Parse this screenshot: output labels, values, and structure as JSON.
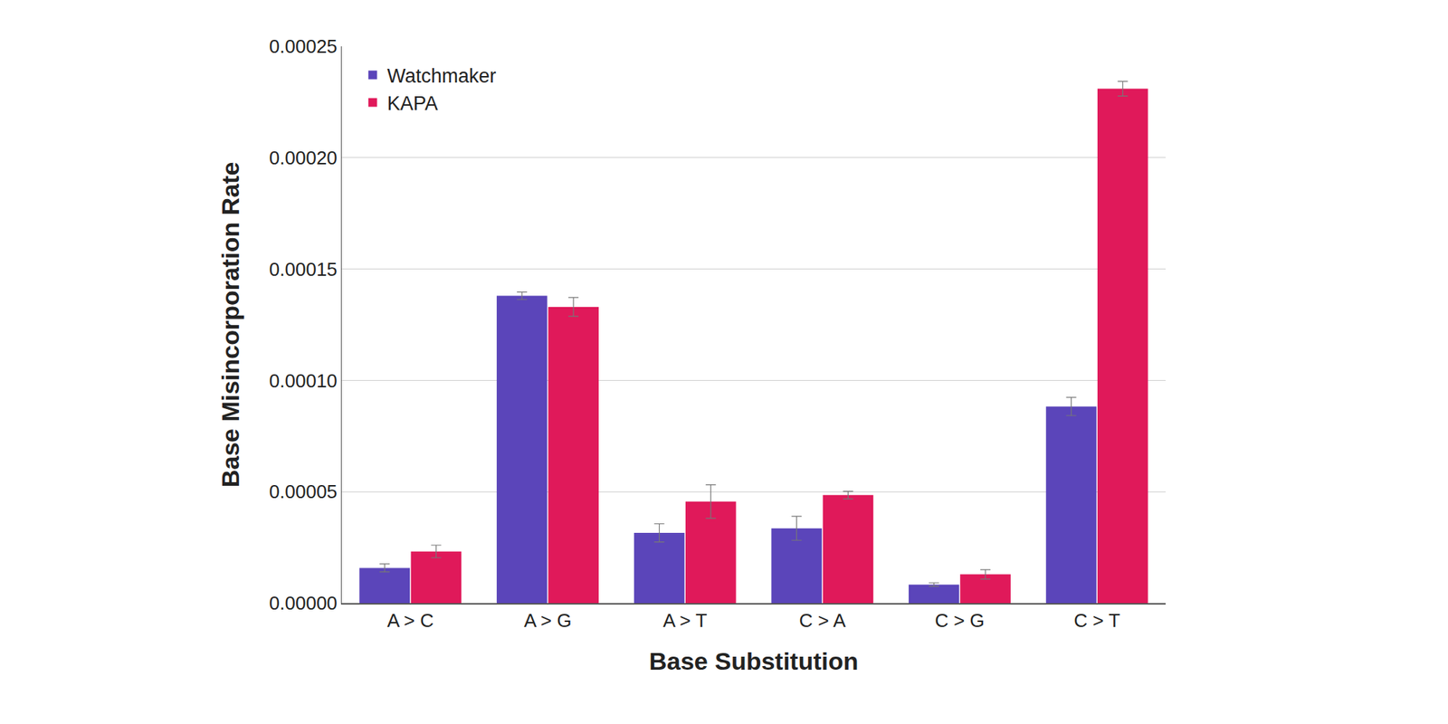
{
  "chart_data": {
    "type": "bar",
    "x_label": "Base Substitution",
    "y_label": "Base Misincorporation Rate",
    "categories": [
      "A > C",
      "A > G",
      "A > T",
      "C > A",
      "C > G",
      "C > T"
    ],
    "series": [
      {
        "name": "Watchmaker",
        "color": "#5b45ba",
        "values": [
          1.58e-05,
          0.000138,
          3.15e-05,
          3.36e-05,
          8.3e-06,
          8.83e-05
        ],
        "errors": [
          1.8e-06,
          1.7e-06,
          4.1e-06,
          5.4e-06,
          8e-07,
          4.1e-06
        ]
      },
      {
        "name": "KAPA",
        "color": "#e0195a",
        "values": [
          2.32e-05,
          0.000133,
          4.56e-05,
          4.85e-05,
          1.29e-05,
          0.000231
        ],
        "errors": [
          2.8e-06,
          4.2e-06,
          7.5e-06,
          1.7e-06,
          2.1e-06,
          3.3e-06
        ]
      }
    ],
    "ylim": [
      0,
      0.00025
    ],
    "yticks": [
      {
        "value": 0,
        "label": "0.00000"
      },
      {
        "value": 5e-05,
        "label": "0.00005"
      },
      {
        "value": 0.0001,
        "label": "0.00010"
      },
      {
        "value": 0.00015,
        "label": "0.00015"
      },
      {
        "value": 0.0002,
        "label": "0.00020"
      },
      {
        "value": 0.00025,
        "label": "0.00025"
      }
    ],
    "grid": true,
    "legend": "top-left"
  }
}
